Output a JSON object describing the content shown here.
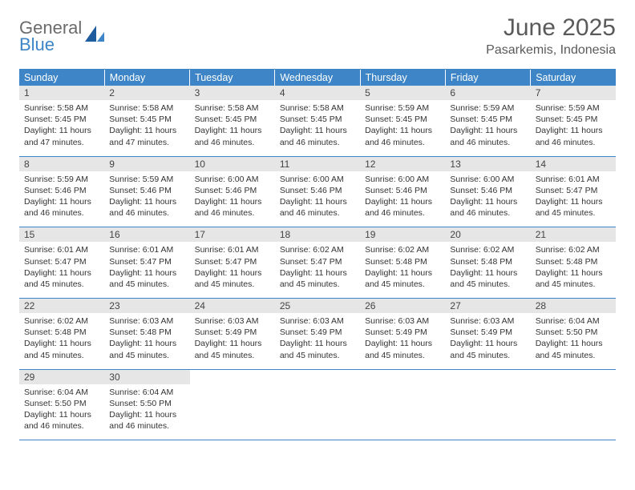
{
  "logo": {
    "line1": "General",
    "line2": "Blue"
  },
  "title": "June 2025",
  "location": "Pasarkemis, Indonesia",
  "colors": {
    "header_bg": "#3d85c6",
    "header_text": "#ffffff",
    "daynum_bg": "#e6e6e6",
    "border": "#3d85c6",
    "body_text": "#333333",
    "title_text": "#5a5a5a"
  },
  "fonts": {
    "title_size_pt": 22,
    "location_size_pt": 12,
    "dow_size_pt": 9,
    "body_size_pt": 8
  },
  "day_names": [
    "Sunday",
    "Monday",
    "Tuesday",
    "Wednesday",
    "Thursday",
    "Friday",
    "Saturday"
  ],
  "weeks": [
    [
      {
        "n": "1",
        "sunrise": "Sunrise: 5:58 AM",
        "sunset": "Sunset: 5:45 PM",
        "daylight": "Daylight: 11 hours and 47 minutes."
      },
      {
        "n": "2",
        "sunrise": "Sunrise: 5:58 AM",
        "sunset": "Sunset: 5:45 PM",
        "daylight": "Daylight: 11 hours and 47 minutes."
      },
      {
        "n": "3",
        "sunrise": "Sunrise: 5:58 AM",
        "sunset": "Sunset: 5:45 PM",
        "daylight": "Daylight: 11 hours and 46 minutes."
      },
      {
        "n": "4",
        "sunrise": "Sunrise: 5:58 AM",
        "sunset": "Sunset: 5:45 PM",
        "daylight": "Daylight: 11 hours and 46 minutes."
      },
      {
        "n": "5",
        "sunrise": "Sunrise: 5:59 AM",
        "sunset": "Sunset: 5:45 PM",
        "daylight": "Daylight: 11 hours and 46 minutes."
      },
      {
        "n": "6",
        "sunrise": "Sunrise: 5:59 AM",
        "sunset": "Sunset: 5:45 PM",
        "daylight": "Daylight: 11 hours and 46 minutes."
      },
      {
        "n": "7",
        "sunrise": "Sunrise: 5:59 AM",
        "sunset": "Sunset: 5:45 PM",
        "daylight": "Daylight: 11 hours and 46 minutes."
      }
    ],
    [
      {
        "n": "8",
        "sunrise": "Sunrise: 5:59 AM",
        "sunset": "Sunset: 5:46 PM",
        "daylight": "Daylight: 11 hours and 46 minutes."
      },
      {
        "n": "9",
        "sunrise": "Sunrise: 5:59 AM",
        "sunset": "Sunset: 5:46 PM",
        "daylight": "Daylight: 11 hours and 46 minutes."
      },
      {
        "n": "10",
        "sunrise": "Sunrise: 6:00 AM",
        "sunset": "Sunset: 5:46 PM",
        "daylight": "Daylight: 11 hours and 46 minutes."
      },
      {
        "n": "11",
        "sunrise": "Sunrise: 6:00 AM",
        "sunset": "Sunset: 5:46 PM",
        "daylight": "Daylight: 11 hours and 46 minutes."
      },
      {
        "n": "12",
        "sunrise": "Sunrise: 6:00 AM",
        "sunset": "Sunset: 5:46 PM",
        "daylight": "Daylight: 11 hours and 46 minutes."
      },
      {
        "n": "13",
        "sunrise": "Sunrise: 6:00 AM",
        "sunset": "Sunset: 5:46 PM",
        "daylight": "Daylight: 11 hours and 46 minutes."
      },
      {
        "n": "14",
        "sunrise": "Sunrise: 6:01 AM",
        "sunset": "Sunset: 5:47 PM",
        "daylight": "Daylight: 11 hours and 45 minutes."
      }
    ],
    [
      {
        "n": "15",
        "sunrise": "Sunrise: 6:01 AM",
        "sunset": "Sunset: 5:47 PM",
        "daylight": "Daylight: 11 hours and 45 minutes."
      },
      {
        "n": "16",
        "sunrise": "Sunrise: 6:01 AM",
        "sunset": "Sunset: 5:47 PM",
        "daylight": "Daylight: 11 hours and 45 minutes."
      },
      {
        "n": "17",
        "sunrise": "Sunrise: 6:01 AM",
        "sunset": "Sunset: 5:47 PM",
        "daylight": "Daylight: 11 hours and 45 minutes."
      },
      {
        "n": "18",
        "sunrise": "Sunrise: 6:02 AM",
        "sunset": "Sunset: 5:47 PM",
        "daylight": "Daylight: 11 hours and 45 minutes."
      },
      {
        "n": "19",
        "sunrise": "Sunrise: 6:02 AM",
        "sunset": "Sunset: 5:48 PM",
        "daylight": "Daylight: 11 hours and 45 minutes."
      },
      {
        "n": "20",
        "sunrise": "Sunrise: 6:02 AM",
        "sunset": "Sunset: 5:48 PM",
        "daylight": "Daylight: 11 hours and 45 minutes."
      },
      {
        "n": "21",
        "sunrise": "Sunrise: 6:02 AM",
        "sunset": "Sunset: 5:48 PM",
        "daylight": "Daylight: 11 hours and 45 minutes."
      }
    ],
    [
      {
        "n": "22",
        "sunrise": "Sunrise: 6:02 AM",
        "sunset": "Sunset: 5:48 PM",
        "daylight": "Daylight: 11 hours and 45 minutes."
      },
      {
        "n": "23",
        "sunrise": "Sunrise: 6:03 AM",
        "sunset": "Sunset: 5:48 PM",
        "daylight": "Daylight: 11 hours and 45 minutes."
      },
      {
        "n": "24",
        "sunrise": "Sunrise: 6:03 AM",
        "sunset": "Sunset: 5:49 PM",
        "daylight": "Daylight: 11 hours and 45 minutes."
      },
      {
        "n": "25",
        "sunrise": "Sunrise: 6:03 AM",
        "sunset": "Sunset: 5:49 PM",
        "daylight": "Daylight: 11 hours and 45 minutes."
      },
      {
        "n": "26",
        "sunrise": "Sunrise: 6:03 AM",
        "sunset": "Sunset: 5:49 PM",
        "daylight": "Daylight: 11 hours and 45 minutes."
      },
      {
        "n": "27",
        "sunrise": "Sunrise: 6:03 AM",
        "sunset": "Sunset: 5:49 PM",
        "daylight": "Daylight: 11 hours and 45 minutes."
      },
      {
        "n": "28",
        "sunrise": "Sunrise: 6:04 AM",
        "sunset": "Sunset: 5:50 PM",
        "daylight": "Daylight: 11 hours and 45 minutes."
      }
    ],
    [
      {
        "n": "29",
        "sunrise": "Sunrise: 6:04 AM",
        "sunset": "Sunset: 5:50 PM",
        "daylight": "Daylight: 11 hours and 46 minutes."
      },
      {
        "n": "30",
        "sunrise": "Sunrise: 6:04 AM",
        "sunset": "Sunset: 5:50 PM",
        "daylight": "Daylight: 11 hours and 46 minutes."
      },
      {
        "empty": true
      },
      {
        "empty": true
      },
      {
        "empty": true
      },
      {
        "empty": true
      },
      {
        "empty": true
      }
    ]
  ]
}
